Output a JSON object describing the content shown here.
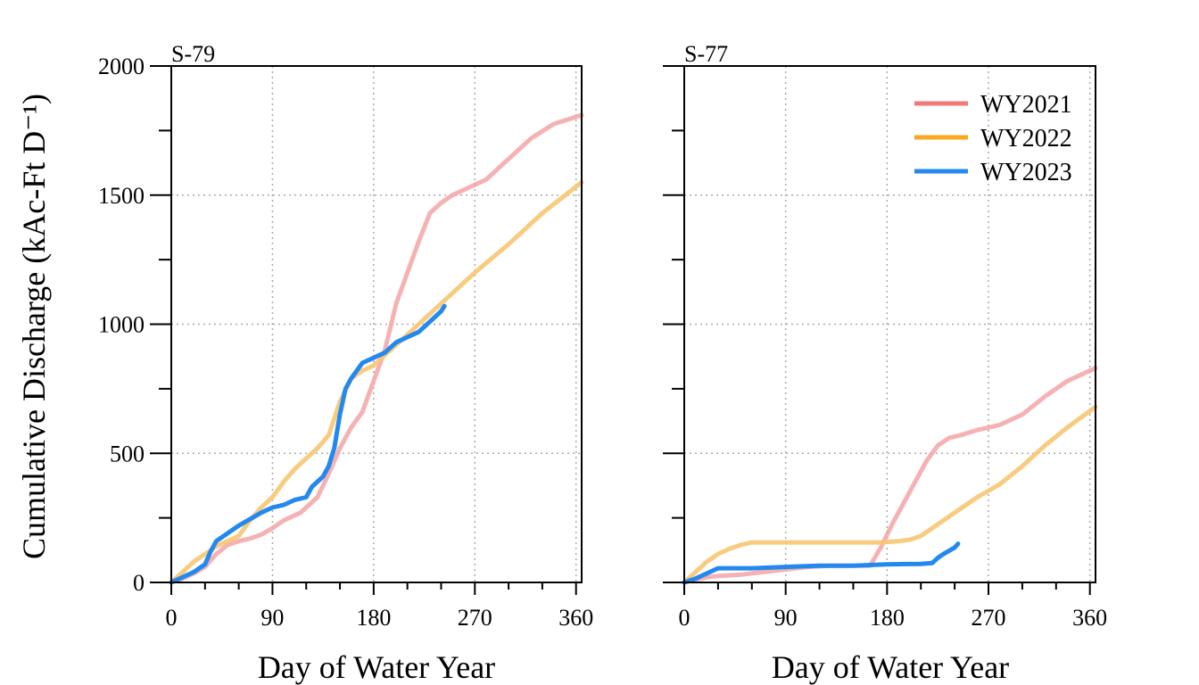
{
  "chart_data": {
    "type": "line",
    "ylabel": "Cumulative Discharge (kAc-Ft D⁻¹)",
    "xlabel": "Day of Water Year",
    "xlim": [
      0,
      365
    ],
    "ylim": [
      0,
      2000
    ],
    "xticks": [
      0,
      90,
      180,
      270,
      360
    ],
    "yticks": [
      0,
      500,
      1000,
      1500,
      2000
    ],
    "x_minor_step": 30,
    "y_minor_step": 250,
    "grid": true,
    "legend": {
      "placement": "top-right",
      "panel": 1,
      "entries": [
        {
          "name": "WY2021",
          "color": "#F07A78"
        },
        {
          "name": "WY2022",
          "color": "#F8A91F"
        },
        {
          "name": "WY2023",
          "color": "#2389EE"
        }
      ]
    },
    "panels": [
      {
        "title": "S-79",
        "series": [
          {
            "name": "WY2021",
            "color": "#F4A3A6",
            "opacity": 0.85,
            "points": [
              [
                0,
                0
              ],
              [
                10,
                15
              ],
              [
                20,
                35
              ],
              [
                30,
                60
              ],
              [
                40,
                110
              ],
              [
                50,
                145
              ],
              [
                60,
                160
              ],
              [
                70,
                170
              ],
              [
                80,
                185
              ],
              [
                90,
                210
              ],
              [
                100,
                240
              ],
              [
                115,
                270
              ],
              [
                120,
                290
              ],
              [
                130,
                330
              ],
              [
                140,
                420
              ],
              [
                150,
                520
              ],
              [
                160,
                600
              ],
              [
                170,
                660
              ],
              [
                180,
                780
              ],
              [
                190,
                900
              ],
              [
                200,
                1080
              ],
              [
                210,
                1200
              ],
              [
                220,
                1320
              ],
              [
                230,
                1430
              ],
              [
                240,
                1470
              ],
              [
                250,
                1500
              ],
              [
                260,
                1520
              ],
              [
                270,
                1540
              ],
              [
                280,
                1560
              ],
              [
                300,
                1640
              ],
              [
                320,
                1720
              ],
              [
                340,
                1775
              ],
              [
                365,
                1810
              ]
            ]
          },
          {
            "name": "WY2022",
            "color": "#F8C571",
            "opacity": 0.9,
            "points": [
              [
                0,
                0
              ],
              [
                10,
                40
              ],
              [
                20,
                80
              ],
              [
                30,
                110
              ],
              [
                40,
                140
              ],
              [
                50,
                160
              ],
              [
                60,
                180
              ],
              [
                70,
                240
              ],
              [
                80,
                290
              ],
              [
                90,
                330
              ],
              [
                100,
                390
              ],
              [
                110,
                440
              ],
              [
                120,
                480
              ],
              [
                130,
                520
              ],
              [
                140,
                570
              ],
              [
                150,
                700
              ],
              [
                160,
                790
              ],
              [
                170,
                820
              ],
              [
                180,
                840
              ],
              [
                190,
                880
              ],
              [
                200,
                920
              ],
              [
                210,
                960
              ],
              [
                220,
                1000
              ],
              [
                240,
                1080
              ],
              [
                270,
                1200
              ],
              [
                300,
                1310
              ],
              [
                330,
                1430
              ],
              [
                365,
                1550
              ]
            ]
          },
          {
            "name": "WY2023",
            "color": "#2389EE",
            "opacity": 1,
            "points": [
              [
                0,
                0
              ],
              [
                10,
                20
              ],
              [
                20,
                40
              ],
              [
                30,
                70
              ],
              [
                35,
                120
              ],
              [
                40,
                160
              ],
              [
                50,
                190
              ],
              [
                60,
                220
              ],
              [
                70,
                245
              ],
              [
                80,
                270
              ],
              [
                90,
                290
              ],
              [
                100,
                300
              ],
              [
                110,
                320
              ],
              [
                120,
                330
              ],
              [
                125,
                370
              ],
              [
                130,
                390
              ],
              [
                135,
                410
              ],
              [
                140,
                450
              ],
              [
                145,
                520
              ],
              [
                150,
                650
              ],
              [
                155,
                750
              ],
              [
                160,
                790
              ],
              [
                165,
                820
              ],
              [
                170,
                850
              ],
              [
                180,
                870
              ],
              [
                190,
                890
              ],
              [
                200,
                930
              ],
              [
                210,
                950
              ],
              [
                220,
                970
              ],
              [
                230,
                1010
              ],
              [
                240,
                1050
              ],
              [
                243,
                1070
              ]
            ]
          }
        ]
      },
      {
        "title": "S-77",
        "series": [
          {
            "name": "WY2021",
            "color": "#F4A3A6",
            "opacity": 0.85,
            "points": [
              [
                0,
                0
              ],
              [
                10,
                10
              ],
              [
                20,
                20
              ],
              [
                30,
                25
              ],
              [
                50,
                30
              ],
              [
                70,
                40
              ],
              [
                90,
                50
              ],
              [
                110,
                60
              ],
              [
                130,
                65
              ],
              [
                150,
                65
              ],
              [
                165,
                65
              ],
              [
                175,
                140
              ],
              [
                185,
                230
              ],
              [
                195,
                310
              ],
              [
                205,
                390
              ],
              [
                215,
                470
              ],
              [
                225,
                530
              ],
              [
                235,
                560
              ],
              [
                245,
                570
              ],
              [
                260,
                590
              ],
              [
                280,
                610
              ],
              [
                300,
                650
              ],
              [
                320,
                720
              ],
              [
                340,
                780
              ],
              [
                365,
                830
              ]
            ]
          },
          {
            "name": "WY2022",
            "color": "#F8C571",
            "opacity": 0.9,
            "points": [
              [
                0,
                0
              ],
              [
                10,
                40
              ],
              [
                20,
                80
              ],
              [
                30,
                110
              ],
              [
                40,
                130
              ],
              [
                50,
                145
              ],
              [
                60,
                155
              ],
              [
                100,
                155
              ],
              [
                150,
                155
              ],
              [
                175,
                155
              ],
              [
                190,
                160
              ],
              [
                200,
                165
              ],
              [
                210,
                180
              ],
              [
                220,
                210
              ],
              [
                240,
                270
              ],
              [
                260,
                330
              ],
              [
                280,
                380
              ],
              [
                300,
                450
              ],
              [
                320,
                530
              ],
              [
                340,
                600
              ],
              [
                365,
                680
              ]
            ]
          },
          {
            "name": "WY2023",
            "color": "#2389EE",
            "opacity": 1,
            "points": [
              [
                0,
                0
              ],
              [
                10,
                15
              ],
              [
                20,
                35
              ],
              [
                30,
                55
              ],
              [
                60,
                55
              ],
              [
                90,
                60
              ],
              [
                120,
                65
              ],
              [
                150,
                65
              ],
              [
                180,
                70
              ],
              [
                210,
                72
              ],
              [
                220,
                75
              ],
              [
                225,
                95
              ],
              [
                230,
                110
              ],
              [
                240,
                135
              ],
              [
                243,
                150
              ]
            ]
          }
        ]
      }
    ]
  }
}
